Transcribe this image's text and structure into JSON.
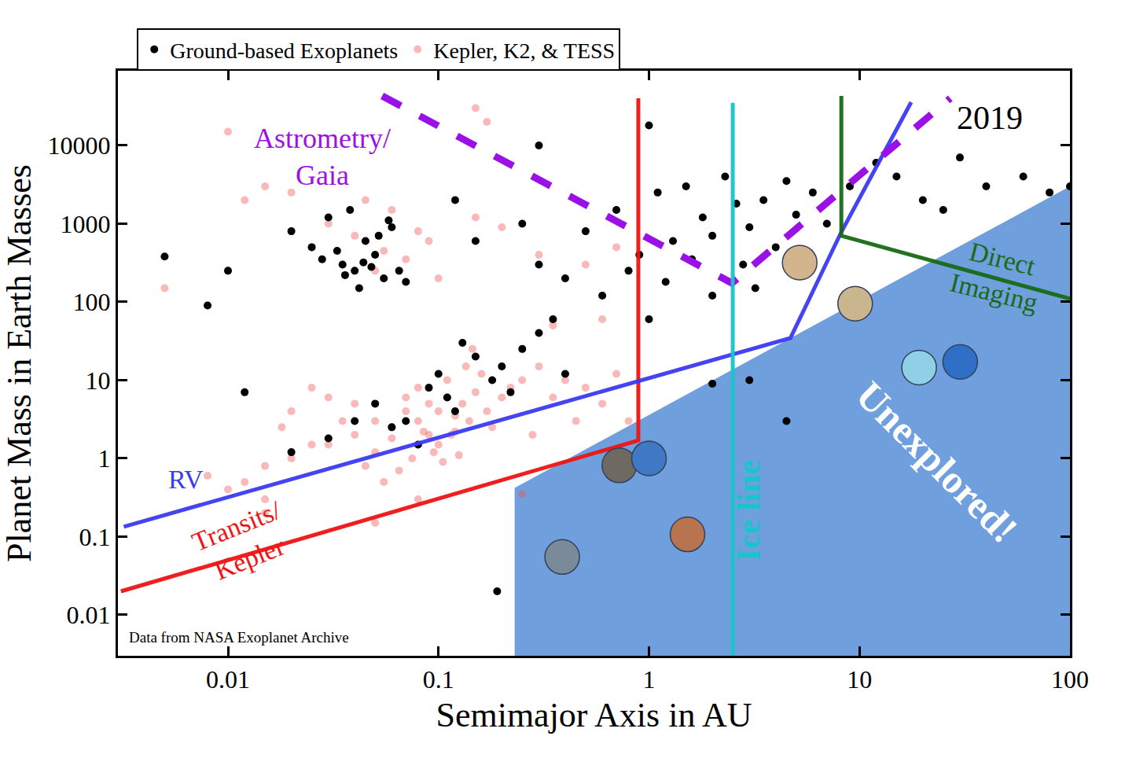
{
  "chart_data": {
    "type": "scatter",
    "log": true,
    "grid": false,
    "legend": "top",
    "x_label": "Semimajor Axis in AU",
    "y_label": "Planet Mass in Earth Masses",
    "xlim": [
      0.003,
      100
    ],
    "ylim": [
      0.003,
      90000
    ],
    "xticks": [
      0.01,
      0.1,
      1,
      10,
      100
    ],
    "yticks": [
      0.01,
      0.1,
      1,
      10,
      100,
      1000,
      10000
    ],
    "annotations": [
      {
        "text": "2019"
      },
      {
        "text": "Data from NASA Exoplanet Archive"
      }
    ],
    "series": [
      {
        "label": "Unexplored!",
        "type": "area",
        "color": "#6f9fdc",
        "x": [
          0.23,
          0.23,
          100,
          100
        ],
        "values": [
          0.003,
          0.42,
          3000,
          0.003
        ]
      },
      {
        "name": "Kepler, K2, & TESS",
        "type": "scatter",
        "color": "#f05050",
        "marker": "circle",
        "x": [
          0.03,
          0.04,
          0.05,
          0.06,
          0.07,
          0.08,
          0.09,
          0.1,
          0.11,
          0.12,
          0.13,
          0.15,
          0.17,
          0.2,
          0.22,
          0.25,
          0.05,
          0.06,
          0.07,
          0.08,
          0.09,
          0.1,
          0.11,
          0.12,
          0.14,
          0.16,
          0.18,
          0.04,
          0.035,
          0.045,
          0.02,
          0.025,
          0.015,
          0.012,
          0.01,
          0.008,
          0.3,
          0.35,
          0.4,
          0.5,
          0.6,
          0.7,
          0.8,
          0.45,
          0.28,
          0.055,
          0.065,
          0.075,
          0.085,
          0.095,
          0.105,
          0.115,
          0.125,
          0.135,
          0.145,
          0.03,
          0.025,
          0.02,
          0.018,
          0.015,
          0.025,
          0.03,
          0.035,
          0.04,
          0.045,
          0.05,
          0.055,
          0.06,
          0.07,
          0.08,
          0.09,
          0.1,
          0.15,
          0.2,
          0.3,
          0.5,
          0.7,
          0.02,
          0.015,
          0.012,
          0.005,
          0.01,
          0.15,
          0.17,
          0.35,
          0.6,
          0.015,
          0.05,
          0.08,
          0.25
        ],
        "values": [
          1.5,
          2,
          3,
          2.5,
          4,
          3,
          5,
          4,
          6,
          3.5,
          5,
          7,
          4,
          6,
          8,
          10,
          1.2,
          1.8,
          6,
          8,
          2,
          1.5,
          10,
          2.2,
          3,
          12,
          2.5,
          5,
          3,
          0.8,
          1,
          1.5,
          0.8,
          0.5,
          0.4,
          0.6,
          15,
          6,
          10,
          8,
          5,
          12,
          3,
          3,
          2,
          0.5,
          0.7,
          1,
          2.2,
          1.2,
          0.9,
          2,
          1.1,
          15,
          25,
          6,
          8,
          4,
          2.5,
          0.3,
          500,
          1000,
          300,
          700,
          2000,
          250,
          450,
          1500,
          350,
          800,
          600,
          200,
          1200,
          900,
          400,
          300,
          500,
          2500,
          3000,
          2000,
          150,
          15000,
          30000,
          20000,
          50,
          60,
          0.2,
          0.15,
          0.3,
          0.35
        ]
      },
      {
        "name": "Ground-based Exoplanets",
        "type": "scatter",
        "color": "#000000",
        "marker": "circle",
        "x": [
          0.02,
          0.025,
          0.03,
          0.035,
          0.04,
          0.045,
          0.05,
          0.055,
          0.06,
          0.042,
          0.028,
          0.038,
          0.048,
          0.052,
          0.033,
          0.044,
          0.058,
          0.065,
          0.07,
          0.036,
          0.005,
          0.01,
          0.008,
          0.012,
          0.05,
          0.07,
          0.09,
          0.1,
          0.12,
          0.15,
          0.2,
          0.25,
          0.3,
          0.08,
          0.06,
          0.11,
          0.13,
          0.18,
          0.22,
          0.35,
          0.4,
          0.04,
          0.03,
          0.02,
          0.5,
          0.7,
          0.9,
          1.1,
          1.3,
          1.5,
          1.8,
          2.0,
          2.3,
          2.6,
          3.0,
          3.5,
          4.0,
          4.5,
          5.0,
          6.0,
          7.0,
          0.8,
          1.2,
          1.6,
          0.3,
          0.4,
          0.6,
          1.0,
          2.0,
          2.8,
          3.2,
          0.25,
          0.15,
          0.12,
          9,
          12,
          15,
          20,
          30,
          40,
          60,
          80,
          100,
          25,
          0.19,
          4.5,
          3,
          2,
          1,
          0.3
        ],
        "values": [
          800,
          500,
          1200,
          300,
          250,
          600,
          400,
          200,
          900,
          150,
          350,
          1500,
          280,
          700,
          450,
          320,
          1100,
          250,
          180,
          220,
          380,
          250,
          90,
          7,
          5,
          3,
          8,
          12,
          4,
          20,
          15,
          25,
          40,
          1.5,
          2.5,
          6,
          30,
          10,
          7,
          60,
          12,
          3,
          1.8,
          1.2,
          800,
          1500,
          400,
          2500,
          600,
          3000,
          1200,
          700,
          4000,
          1800,
          900,
          2000,
          500,
          3500,
          1300,
          2500,
          1000,
          250,
          180,
          350,
          300,
          200,
          120,
          60,
          120,
          300,
          150,
          1000,
          600,
          2000,
          3000,
          6000,
          4000,
          2000,
          7000,
          3000,
          4000,
          2500,
          3000,
          1500,
          0.02,
          3,
          10,
          9,
          18000,
          10000
        ]
      },
      {
        "label": "Transits/Kepler",
        "type": "line",
        "color": "#f01414",
        "line_style": "solid",
        "x": [
          0.0031,
          0.89,
          0.89
        ],
        "values": [
          0.02,
          1.7,
          40000
        ]
      },
      {
        "label": "RV",
        "type": "line",
        "color": "#3b3bf2",
        "line_style": "solid",
        "x": [
          0.0032,
          4.7,
          8.2,
          17.6
        ],
        "values": [
          0.134,
          34.5,
          783,
          35700
        ]
      },
      {
        "label": "Astrometry/Gaia",
        "type": "line",
        "color": "#9a10e6",
        "line_style": "dashed",
        "x": [
          0.054,
          2.48,
          27
        ],
        "values": [
          43000,
          174,
          40000
        ]
      },
      {
        "label": "Ice line",
        "type": "line",
        "color": "#19c4cc",
        "line_style": "solid",
        "x": [
          2.5,
          2.5
        ],
        "values": [
          0.003,
          35000
        ]
      },
      {
        "label": "Direct Imaging",
        "type": "line",
        "color": "#176b17",
        "line_style": "solid",
        "x": [
          8.2,
          8.2,
          100
        ],
        "values": [
          43000,
          700,
          110
        ]
      },
      {
        "type": "scatter",
        "marker": "circle",
        "colors": [
          "#7b8a99",
          "#6e6a62",
          "#3f78c4",
          "#b8734f",
          "#d4b48c",
          "#c9b68e",
          "#8fd0e6",
          "#2f6fc8"
        ],
        "x": [
          0.387,
          0.723,
          1,
          1.524,
          5.2,
          9.54,
          19.2,
          30.1
        ],
        "values": [
          0.055,
          0.815,
          1,
          0.107,
          318,
          95,
          14.5,
          17.1
        ]
      }
    ]
  }
}
